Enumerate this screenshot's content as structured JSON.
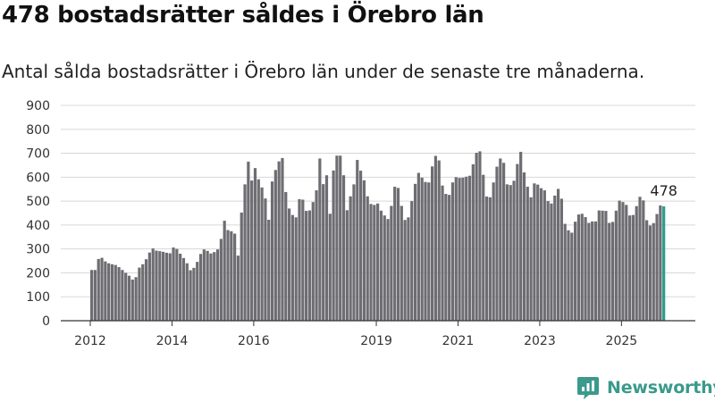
{
  "title": "478 bostadsrätter såldes i Örebro län",
  "subtitle": "Antal sålda bostadsrätter i Örebro län under de senaste tre månaderna.",
  "brand": {
    "name": "Newsworthy",
    "icon": "newsworthy-logo-icon"
  },
  "colors": {
    "bar": "#6d6d72",
    "highlight": "#2a9d8f",
    "grid": "#d8d8d8",
    "brand": "#3a9a8c"
  },
  "chart_data": {
    "type": "bar",
    "title": "",
    "xlabel": "",
    "ylabel": "",
    "ylim": [
      0,
      900
    ],
    "yticks": [
      0,
      100,
      200,
      300,
      400,
      500,
      600,
      700,
      800,
      900
    ],
    "grid": true,
    "x_tick_labels": [
      "2012",
      "2014",
      "2016",
      "2019",
      "2021",
      "2023",
      "2025"
    ],
    "x_tick_years": [
      2012,
      2014,
      2016,
      2019,
      2021,
      2023,
      2025
    ],
    "x_start": "2012-01",
    "annotation": {
      "text": "478",
      "target": "last"
    },
    "values": [
      212,
      212,
      258,
      263,
      248,
      240,
      236,
      233,
      224,
      212,
      200,
      188,
      172,
      182,
      222,
      236,
      257,
      285,
      302,
      293,
      291,
      288,
      284,
      282,
      306,
      300,
      280,
      262,
      240,
      211,
      221,
      246,
      279,
      298,
      292,
      281,
      287,
      298,
      342,
      418,
      379,
      374,
      364,
      272,
      452,
      570,
      665,
      586,
      638,
      591,
      557,
      511,
      422,
      582,
      630,
      666,
      680,
      538,
      469,
      442,
      432,
      508,
      506,
      459,
      461,
      496,
      545,
      678,
      571,
      608,
      447,
      628,
      690,
      690,
      608,
      462,
      520,
      570,
      672,
      627,
      587,
      520,
      488,
      484,
      490,
      460,
      440,
      425,
      480,
      560,
      555,
      480,
      421,
      432,
      500,
      572,
      618,
      598,
      580,
      578,
      645,
      689,
      670,
      565,
      530,
      526,
      578,
      600,
      597,
      598,
      602,
      606,
      654,
      702,
      708,
      610,
      519,
      516,
      578,
      644,
      678,
      660,
      570,
      567,
      585,
      655,
      706,
      620,
      560,
      516,
      574,
      569,
      554,
      545,
      500,
      490,
      523,
      551,
      510,
      405,
      378,
      368,
      414,
      444,
      447,
      433,
      409,
      415,
      415,
      461,
      460,
      459,
      409,
      413,
      460,
      502,
      496,
      484,
      440,
      442,
      479,
      518,
      503,
      420,
      398,
      408,
      446,
      482,
      478
    ]
  }
}
